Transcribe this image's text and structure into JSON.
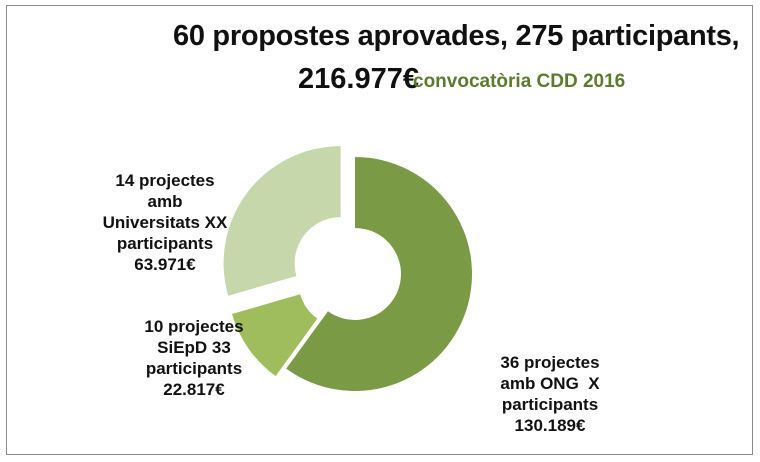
{
  "title_line1": "60 propostes aprovades, 275 participants,",
  "title_line2": "216.977€",
  "subtitle": "convocatòria CDD 2016",
  "colors": {
    "ong": "#7a9a45",
    "siepd": "#9fbd5c",
    "universitats": "#c5d7ab"
  },
  "chart_data": {
    "type": "pie",
    "variant": "exploded-donut",
    "title": "60 propostes aprovades, 275 participants, 216.977€",
    "subtitle": "convocatòria CDD 2016",
    "slices": [
      {
        "key": "ong",
        "value": 130189,
        "lines": [
          "36 projectes",
          "amb ONG  X",
          "participants",
          "130.189€"
        ]
      },
      {
        "key": "siepd",
        "value": 22817,
        "lines": [
          "10 projectes",
          "SiEpD 33",
          "participants",
          "22.817€"
        ]
      },
      {
        "key": "universitats",
        "value": 63971,
        "lines": [
          "14 projectes",
          "amb",
          "Universitats XX",
          "participants",
          "63.971€"
        ]
      }
    ]
  }
}
